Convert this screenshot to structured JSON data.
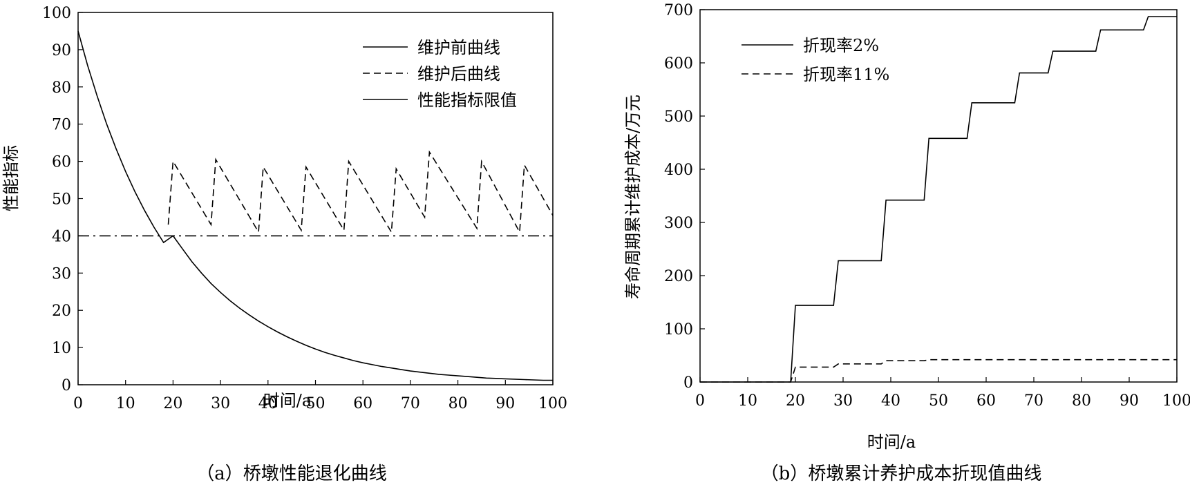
{
  "chart_data": [
    {
      "type": "line",
      "caption": "（a）桥墩性能退化曲线",
      "xlabel": "时间/a",
      "ylabel": "性能指标",
      "xlim": [
        0,
        100
      ],
      "ylim": [
        0,
        100
      ],
      "xticks": [
        0,
        10,
        20,
        30,
        40,
        50,
        60,
        70,
        80,
        90,
        100
      ],
      "yticks": [
        0,
        10,
        20,
        30,
        40,
        50,
        60,
        70,
        80,
        90,
        100
      ],
      "legend_position": "top-right",
      "series": [
        {
          "name": "维护前曲线",
          "style": "solid",
          "x": [
            0,
            2,
            4,
            6,
            8,
            10,
            12,
            14,
            16,
            18,
            20,
            22,
            24,
            26,
            28,
            30,
            32,
            34,
            36,
            38,
            40,
            42,
            44,
            46,
            48,
            50,
            52,
            54,
            56,
            58,
            60,
            62,
            64,
            66,
            68,
            70,
            72,
            74,
            76,
            78,
            80,
            82,
            84,
            86,
            88,
            90,
            92,
            94,
            96,
            98,
            100
          ],
          "y": [
            95,
            85.8,
            77.6,
            70.1,
            63.4,
            57.3,
            51.8,
            46.8,
            42.3,
            38.2,
            40,
            36.5,
            33,
            30,
            27.2,
            24.8,
            22.6,
            20.6,
            18.8,
            17.1,
            15.6,
            14.2,
            12.9,
            11.7,
            10.6,
            9.6,
            8.7,
            7.9,
            7.2,
            6.5,
            5.9,
            5.4,
            4.9,
            4.5,
            4.1,
            3.7,
            3.4,
            3.1,
            2.8,
            2.6,
            2.4,
            2.2,
            2.0,
            1.8,
            1.7,
            1.6,
            1.5,
            1.4,
            1.3,
            1.2,
            1.2
          ]
        },
        {
          "name": "维护后曲线",
          "style": "dashed",
          "x": [
            19,
            20,
            28,
            29,
            38,
            39,
            47,
            48,
            56,
            57,
            66,
            67,
            73,
            74,
            84,
            85,
            93,
            94,
            100
          ],
          "y": [
            43,
            60,
            43,
            60.5,
            41,
            58.5,
            41.5,
            58.5,
            41.5,
            60,
            41,
            58,
            45,
            62.5,
            42,
            60,
            41,
            59,
            45.5
          ]
        },
        {
          "name": "性能指标限值",
          "style": "dash-dot",
          "x": [
            0,
            100
          ],
          "y": [
            40,
            40
          ]
        }
      ]
    },
    {
      "type": "line",
      "caption": "（b）桥墩累计养护成本折现值曲线",
      "xlabel": "时间/a",
      "ylabel": "寿命周期累计维护成本/万元",
      "xlim": [
        0,
        100
      ],
      "ylim": [
        0,
        700
      ],
      "xticks": [
        0,
        10,
        20,
        30,
        40,
        50,
        60,
        70,
        80,
        90,
        100
      ],
      "yticks": [
        0,
        100,
        200,
        300,
        400,
        500,
        600,
        700
      ],
      "legend_position": "top-left",
      "series": [
        {
          "name": "折现率2%",
          "style": "solid",
          "x": [
            0,
            19,
            20,
            28,
            29,
            38,
            39,
            47,
            48,
            56,
            57,
            66,
            67,
            73,
            74,
            83,
            84,
            93,
            94,
            100
          ],
          "y": [
            0,
            0,
            144,
            144,
            228,
            228,
            342,
            342,
            458,
            458,
            525,
            525,
            581,
            581,
            622,
            622,
            662,
            662,
            687,
            687
          ]
        },
        {
          "name": "折现率11%",
          "style": "dashed",
          "x": [
            0,
            19,
            20,
            28,
            29,
            38,
            39,
            47,
            48,
            100
          ],
          "y": [
            0,
            0,
            28,
            28,
            34,
            34,
            40,
            40,
            42,
            42
          ]
        }
      ]
    }
  ]
}
